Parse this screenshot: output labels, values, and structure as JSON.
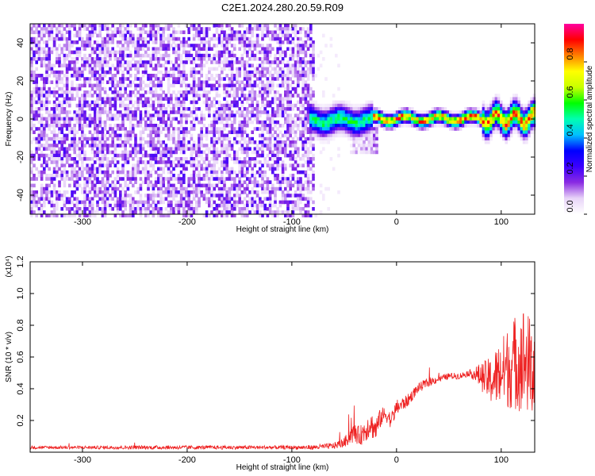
{
  "title": "C2E1.2024.280.20.59.R09",
  "chart_data": [
    {
      "type": "heatmap",
      "xlabel": "Height of straight line (km)",
      "ylabel": "Frequency (Hz)",
      "xlim": [
        -350,
        132
      ],
      "ylim": [
        -50,
        50
      ],
      "xticks": [
        -300,
        -200,
        -100,
        0,
        100
      ],
      "yticks": [
        -40,
        -20,
        0,
        20,
        40
      ],
      "colorbar": {
        "label": "Normalized spectral amplitude",
        "range": [
          0.0,
          1.0
        ],
        "ticks": [
          0.0,
          0.2,
          0.4,
          0.6,
          0.8
        ],
        "tick_labels": [
          "0.0",
          "0.2",
          "0.4",
          "0.6",
          "0.8"
        ],
        "colormap": [
          "#ffffff",
          "#e8d4f8",
          "#8a2be2",
          "#3b00ff",
          "#0000ff",
          "#00c0ff",
          "#00ffb0",
          "#00ff00",
          "#c8ff00",
          "#ffff00",
          "#ff8000",
          "#ff0000",
          "#ff00a0"
        ]
      },
      "regions": [
        {
          "name": "noise",
          "x_range": [
            -350,
            -80
          ],
          "freq_range": [
            -50,
            50
          ],
          "amplitude": "0.1-0.3"
        },
        {
          "name": "signal-onset",
          "x_range": [
            -85,
            -25
          ],
          "freq_center": 0,
          "freq_halfwidth": 4,
          "amplitude": "0.3-0.5"
        },
        {
          "name": "signal-core",
          "x_range": [
            -25,
            132
          ],
          "freq_center": 1,
          "freq_halfwidth": 2,
          "amplitude": "0.6-1.0"
        }
      ]
    },
    {
      "type": "line",
      "xlabel": "Height of straight line (km)",
      "ylabel": "SNR (10 * v/v)",
      "y_multiplier": "(x10⁴)",
      "xlim": [
        -350,
        132
      ],
      "ylim": [
        0,
        1.2
      ],
      "xticks": [
        -300,
        -200,
        -100,
        0,
        100
      ],
      "yticks": [
        0.2,
        0.4,
        0.6,
        0.8,
        1.0,
        1.2
      ],
      "ytick_labels": [
        "0.2",
        "0.4",
        "0.6",
        "0.8",
        "1.0",
        "1.2"
      ],
      "series": [
        {
          "color": "#ee2222",
          "x": [
            -350,
            -300,
            -250,
            -200,
            -150,
            -100,
            -80,
            -60,
            -50,
            -45,
            -40,
            -35,
            -30,
            -25,
            -20,
            -15,
            -10,
            -5,
            0,
            10,
            20,
            30,
            40,
            50,
            60,
            70,
            80,
            90,
            100,
            110,
            120,
            132
          ],
          "y": [
            0.03,
            0.03,
            0.03,
            0.03,
            0.03,
            0.03,
            0.03,
            0.04,
            0.06,
            0.1,
            0.12,
            0.1,
            0.14,
            0.18,
            0.14,
            0.22,
            0.24,
            0.2,
            0.28,
            0.32,
            0.4,
            0.44,
            0.46,
            0.48,
            0.48,
            0.5,
            0.48,
            0.45,
            0.5,
            0.55,
            0.6,
            0.5
          ],
          "spread": [
            0.01,
            0.01,
            0.012,
            0.012,
            0.012,
            0.012,
            0.015,
            0.02,
            0.03,
            0.05,
            0.06,
            0.06,
            0.08,
            0.08,
            0.08,
            0.06,
            0.05,
            0.05,
            0.05,
            0.04,
            0.03,
            0.03,
            0.02,
            0.02,
            0.02,
            0.02,
            0.08,
            0.15,
            0.22,
            0.28,
            0.35,
            0.3
          ]
        }
      ]
    }
  ]
}
